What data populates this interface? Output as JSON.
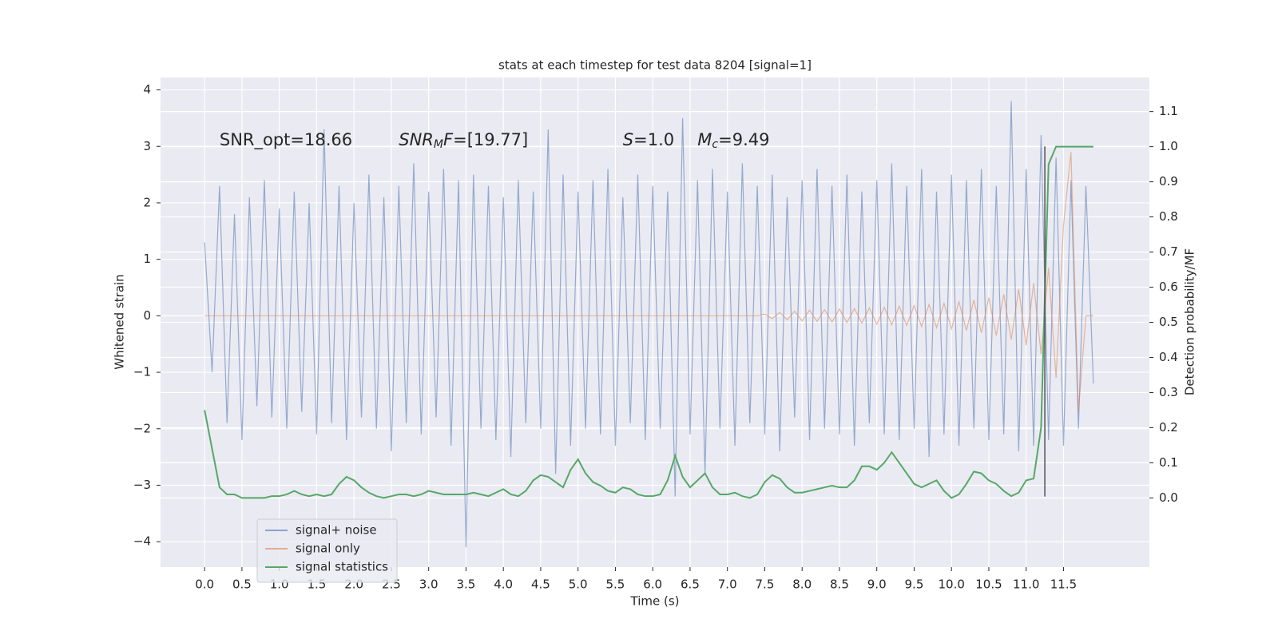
{
  "chart_data": {
    "type": "line",
    "title": "stats at each timestep for test data 8204 [signal=1]",
    "xlabel": "Time (s)",
    "ylabel": "Whitened strain",
    "y2label": "Detection probability/MF",
    "annotations": [
      [
        {
          "t": "SNR_opt=18.66"
        }
      ],
      [
        {
          "t": "SNR",
          "style": "italic"
        },
        {
          "t": "M",
          "style": "sub"
        },
        {
          "t": "F",
          "style": "italic"
        },
        {
          "t": "=[19.77]"
        }
      ],
      [
        {
          "t": "S",
          "style": "italic"
        },
        {
          "t": "=1.0"
        }
      ],
      [
        {
          "t": "M",
          "style": "italic"
        },
        {
          "t": "c",
          "style": "sub"
        },
        {
          "t": "=9.49"
        }
      ]
    ],
    "x": [
      0,
      0.1,
      0.2,
      0.3,
      0.4,
      0.5,
      0.6,
      0.7,
      0.8,
      0.9,
      1,
      1.1,
      1.2,
      1.3,
      1.4,
      1.5,
      1.6,
      1.7,
      1.8,
      1.9,
      2,
      2.1,
      2.2,
      2.3,
      2.4,
      2.5,
      2.6,
      2.7,
      2.8,
      2.9,
      3,
      3.1,
      3.2,
      3.3,
      3.4,
      3.5,
      3.6,
      3.7,
      3.8,
      3.9,
      4,
      4.1,
      4.2,
      4.3,
      4.4,
      4.5,
      4.6,
      4.7,
      4.8,
      4.9,
      5,
      5.1,
      5.2,
      5.3,
      5.4,
      5.5,
      5.6,
      5.7,
      5.8,
      5.9,
      6,
      6.1,
      6.2,
      6.3,
      6.4,
      6.5,
      6.6,
      6.7,
      6.8,
      6.9,
      7,
      7.1,
      7.2,
      7.3,
      7.4,
      7.5,
      7.6,
      7.7,
      7.8,
      7.9,
      8,
      8.1,
      8.2,
      8.3,
      8.4,
      8.5,
      8.6,
      8.7,
      8.8,
      8.9,
      9,
      9.1,
      9.2,
      9.3,
      9.4,
      9.5,
      9.6,
      9.7,
      9.8,
      9.9,
      10,
      10.1,
      10.2,
      10.3,
      10.4,
      10.5,
      10.6,
      10.7,
      10.8,
      10.9,
      11,
      11.1,
      11.2,
      11.3,
      11.4,
      11.5,
      11.6,
      11.7,
      11.8,
      11.9
    ],
    "series": [
      {
        "name": "signal+ noise",
        "color": "#4c72b0",
        "values": [
          1.3,
          -1.0,
          2.3,
          -1.9,
          1.8,
          -2.2,
          2.1,
          -1.6,
          2.4,
          -1.8,
          1.9,
          -2.0,
          2.2,
          -1.7,
          2.0,
          -2.1,
          3.3,
          -1.9,
          2.3,
          -2.2,
          2.0,
          -1.8,
          2.5,
          -2.0,
          2.1,
          -2.4,
          2.3,
          -1.9,
          2.7,
          -2.1,
          2.2,
          -1.8,
          2.6,
          -2.3,
          2.4,
          -4.1,
          2.5,
          -2.0,
          2.3,
          -2.2,
          2.1,
          -2.5,
          2.4,
          -1.9,
          2.2,
          -2.0,
          3.3,
          -2.8,
          2.5,
          -2.3,
          2.2,
          -2.0,
          2.4,
          -2.1,
          2.6,
          -2.3,
          2.1,
          -1.9,
          2.5,
          -2.2,
          2.3,
          -2.0,
          2.2,
          -3.2,
          3.5,
          -2.1,
          2.4,
          -2.8,
          2.6,
          -2.0,
          2.2,
          -2.3,
          2.7,
          -1.9,
          2.3,
          -2.1,
          2.5,
          -2.4,
          2.1,
          -1.8,
          2.4,
          -2.2,
          2.6,
          -2.0,
          2.3,
          -2.1,
          2.5,
          -2.3,
          2.2,
          -1.9,
          2.4,
          -2.1,
          2.7,
          -2.2,
          2.3,
          -2.0,
          2.6,
          -2.5,
          2.2,
          -2.1,
          2.5,
          -2.3,
          2.4,
          -2.0,
          2.6,
          -2.2,
          2.3,
          -2.1,
          3.8,
          -2.4,
          2.6,
          -2.3,
          3.2,
          -2.2,
          2.8,
          -2.3,
          2.4,
          -2.0,
          2.3,
          -1.2
        ]
      },
      {
        "name": "signal only",
        "color": "#dd8452",
        "values": [
          0,
          0,
          0,
          0,
          0,
          0,
          0,
          0,
          0,
          0,
          0,
          0,
          0,
          0,
          0,
          0,
          0,
          0,
          0,
          0,
          0,
          0,
          0,
          0,
          0,
          0,
          0,
          0,
          0,
          0,
          0,
          0,
          0,
          0,
          0,
          0,
          0,
          0,
          0,
          0,
          0,
          0,
          0,
          0,
          0,
          0,
          0,
          0,
          0,
          0,
          0,
          0,
          0,
          0,
          0,
          0,
          0,
          0,
          0,
          0,
          0,
          0,
          0,
          0,
          0,
          0,
          0,
          0,
          0,
          0,
          0,
          0,
          0,
          0,
          0,
          0.03,
          -0.05,
          0.06,
          -0.07,
          0.08,
          -0.09,
          0.1,
          -0.1,
          0.11,
          -0.11,
          0.12,
          -0.12,
          0.13,
          -0.13,
          0.14,
          -0.15,
          0.15,
          -0.16,
          0.17,
          -0.17,
          0.18,
          -0.19,
          0.2,
          -0.21,
          0.22,
          -0.23,
          0.25,
          -0.26,
          0.28,
          -0.3,
          0.32,
          -0.35,
          0.38,
          -0.42,
          0.47,
          -0.52,
          0.58,
          -0.68,
          0.85,
          -1.1,
          1.6,
          2.9,
          -1.7,
          0,
          0
        ]
      },
      {
        "name": "signal statistics",
        "color": "#55a868",
        "axis": "y2",
        "values": [
          0.25,
          0.14,
          0.03,
          0.01,
          0.01,
          0,
          0,
          0,
          0,
          0.005,
          0.005,
          0.01,
          0.02,
          0.01,
          0.005,
          0.01,
          0.005,
          0.01,
          0.04,
          0.06,
          0.05,
          0.03,
          0.015,
          0.005,
          0,
          0.005,
          0.01,
          0.01,
          0.005,
          0.01,
          0.02,
          0.015,
          0.01,
          0.01,
          0.01,
          0.01,
          0.015,
          0.01,
          0.005,
          0.015,
          0.025,
          0.01,
          0.005,
          0.02,
          0.05,
          0.065,
          0.06,
          0.045,
          0.03,
          0.08,
          0.11,
          0.07,
          0.045,
          0.035,
          0.02,
          0.015,
          0.03,
          0.025,
          0.01,
          0.005,
          0.005,
          0.01,
          0.05,
          0.12,
          0.06,
          0.03,
          0.05,
          0.07,
          0.03,
          0.01,
          0.01,
          0.015,
          0.005,
          0,
          0.01,
          0.045,
          0.065,
          0.055,
          0.03,
          0.015,
          0.015,
          0.02,
          0.025,
          0.03,
          0.035,
          0.03,
          0.03,
          0.05,
          0.09,
          0.09,
          0.08,
          0.1,
          0.13,
          0.1,
          0.07,
          0.04,
          0.03,
          0.04,
          0.05,
          0.02,
          0,
          0.01,
          0.04,
          0.075,
          0.07,
          0.05,
          0.04,
          0.02,
          0.005,
          0.015,
          0.05,
          0.055,
          0.2,
          0.95,
          1,
          1,
          1,
          1,
          1,
          1
        ]
      }
    ],
    "vline": {
      "x": 11.25,
      "ymin": -3.2,
      "ymax": 3.0,
      "color": "#555555"
    },
    "xlim": [
      -0.59,
      12.65
    ],
    "xticks": [
      {
        "value": 0,
        "label": "0.0"
      },
      0.5,
      {
        "value": 1,
        "label": "1.0"
      },
      1.5,
      {
        "value": 2,
        "label": "2.0"
      },
      2.5,
      {
        "value": 3,
        "label": "3.0"
      },
      3.5,
      {
        "value": 4,
        "label": "4.0"
      },
      4.5,
      {
        "value": 5,
        "label": "5.0"
      },
      5.5,
      {
        "value": 6,
        "label": "6.0"
      },
      6.5,
      {
        "value": 7,
        "label": "7.0"
      },
      7.5,
      {
        "value": 8,
        "label": "8.0"
      },
      8.5,
      {
        "value": 9,
        "label": "9.0"
      },
      9.5,
      {
        "value": 10,
        "label": "10.0"
      },
      10.5,
      {
        "value": 11,
        "label": "11.0"
      },
      11.5
    ],
    "ylim": [
      -4.45,
      4.22
    ],
    "yticks": [
      {
        "value": -4,
        "label": "−4"
      },
      {
        "value": -3,
        "label": "−3"
      },
      {
        "value": -2,
        "label": "−2"
      },
      {
        "value": -1,
        "label": "−1"
      },
      0,
      1,
      2,
      3,
      4
    ],
    "y2lim": [
      -0.197,
      1.197
    ],
    "y2ticks": [
      {
        "value": 0,
        "label": "0.0"
      },
      0.1,
      0.2,
      0.3,
      0.4,
      0.5,
      0.6,
      0.7,
      0.8,
      0.9,
      {
        "value": 1,
        "label": "1.0"
      },
      1.1
    ],
    "grid": true,
    "legend": "lower left"
  }
}
